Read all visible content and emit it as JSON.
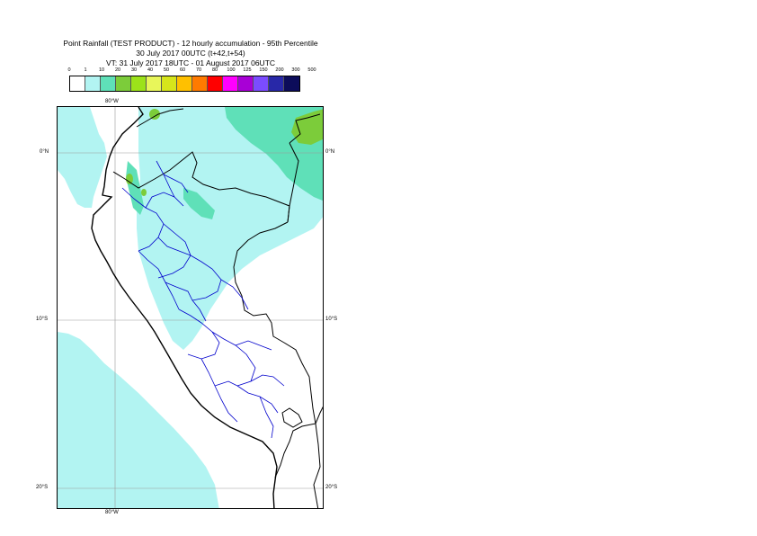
{
  "title": {
    "line1": "Point Rainfall (TEST PRODUCT) - 12 hourly accumulation - 95th Percentile",
    "line2": "30 July 2017 00UTC (t+42,t+54)",
    "line3": "VT: 31 July 2017 18UTC - 01 August 2017 06UTC"
  },
  "legend": {
    "thresholds": [
      "0",
      "1",
      "10",
      "20",
      "30",
      "40",
      "50",
      "60",
      "70",
      "80",
      "100",
      "125",
      "150",
      "200",
      "300",
      "500"
    ],
    "colors": [
      "#ffffff",
      "#b2f4f2",
      "#5fe0b8",
      "#7ccc3a",
      "#9ce21a",
      "#e8f65a",
      "#d6e51b",
      "#ffc000",
      "#ff7a00",
      "#ff0000",
      "#ff00ff",
      "#a800d6",
      "#7b4cff",
      "#2828a8",
      "#0c0c5a"
    ]
  },
  "map": {
    "lon_labels": {
      "top": "80°W",
      "bottom": "80°W"
    },
    "lat_labels": [
      "0°N",
      "10°S",
      "20°S"
    ],
    "colors": {
      "light_rain": "#b2f4f2",
      "moderate_rain": "#5fe0b8",
      "heavier_rain": "#7ccc3a",
      "coastline": "#000000",
      "admin_borders": "#0000cc",
      "grid": "#9a9a9a"
    }
  }
}
